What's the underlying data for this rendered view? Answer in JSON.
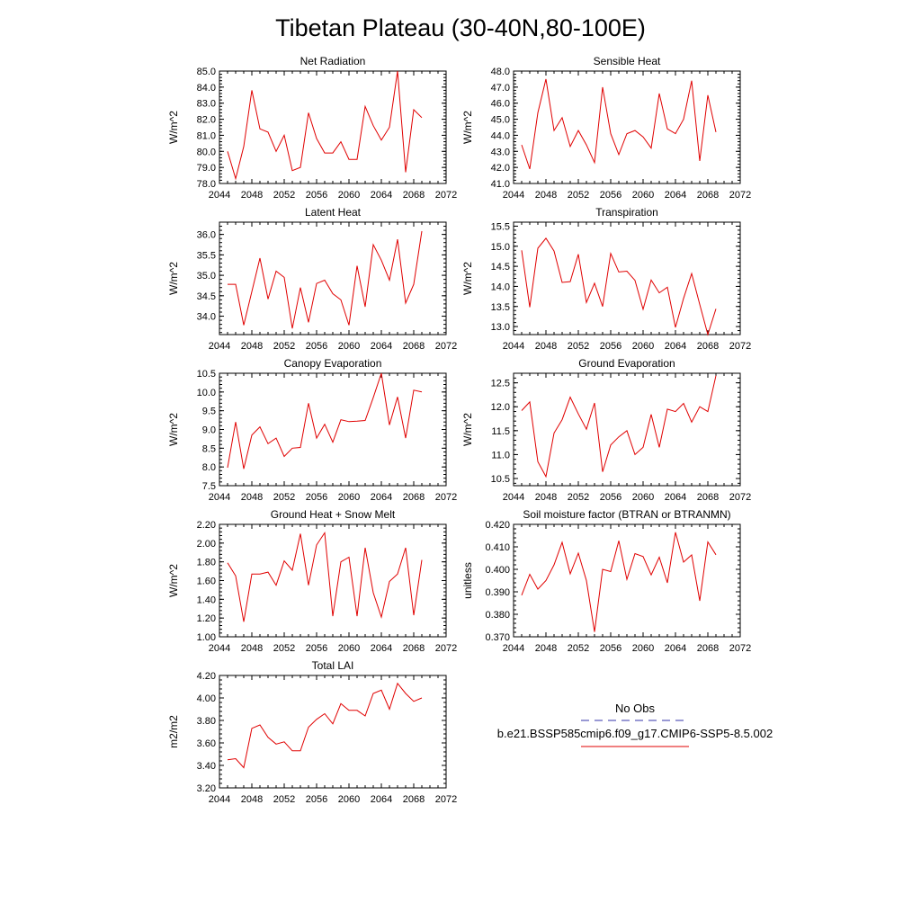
{
  "title": "Tibetan Plateau (30-40N,80-100E)",
  "legend": {
    "obs_label": "No Obs",
    "obs_color": "#3333aa",
    "model_label": "b.e21.BSSP585cmip6.f09_g17.CMIP6-SSP5-8.5.002",
    "model_color": "#e00000"
  },
  "colors": {
    "series": "#e00000",
    "axis": "#000000"
  },
  "chart_data": [
    {
      "type": "line",
      "title": "Net Radiation",
      "ylabel": "W/m^2",
      "xlim": [
        2044,
        2072
      ],
      "xticks": [
        2044,
        2048,
        2052,
        2056,
        2060,
        2064,
        2068,
        2072
      ],
      "ylim": [
        78,
        85
      ],
      "yticks": [
        "78.0",
        "79.0",
        "80.0",
        "81.0",
        "82.0",
        "83.0",
        "84.0",
        "85.0"
      ],
      "x": [
        2045,
        2046,
        2047,
        2048,
        2049,
        2050,
        2051,
        2052,
        2053,
        2054,
        2055,
        2056,
        2057,
        2058,
        2059,
        2060,
        2061,
        2062,
        2063,
        2064,
        2065,
        2066,
        2067,
        2068,
        2069
      ],
      "series": [
        {
          "values": [
            80.0,
            78.3,
            80.3,
            83.8,
            81.4,
            81.2,
            80.0,
            81.0,
            78.8,
            79.0,
            82.4,
            80.8,
            79.9,
            79.9,
            80.6,
            79.5,
            79.5,
            82.8,
            81.6,
            80.7,
            81.5,
            85.0,
            78.7,
            82.6,
            82.1
          ]
        }
      ]
    },
    {
      "type": "line",
      "title": "Sensible Heat",
      "ylabel": "W/m^2",
      "xlim": [
        2044,
        2072
      ],
      "xticks": [
        2044,
        2048,
        2052,
        2056,
        2060,
        2064,
        2068,
        2072
      ],
      "ylim": [
        41,
        48
      ],
      "yticks": [
        "41.0",
        "42.0",
        "43.0",
        "44.0",
        "45.0",
        "46.0",
        "47.0",
        "48.0"
      ],
      "x": [
        2045,
        2046,
        2047,
        2048,
        2049,
        2050,
        2051,
        2052,
        2053,
        2054,
        2055,
        2056,
        2057,
        2058,
        2059,
        2060,
        2061,
        2062,
        2063,
        2064,
        2065,
        2066,
        2067,
        2068,
        2069
      ],
      "series": [
        {
          "values": [
            43.4,
            41.9,
            45.4,
            47.5,
            44.3,
            45.1,
            43.3,
            44.3,
            43.4,
            42.3,
            47.0,
            44.1,
            42.8,
            44.1,
            44.3,
            43.9,
            43.2,
            46.6,
            44.4,
            44.1,
            45.0,
            47.4,
            42.4,
            46.5,
            44.2
          ]
        }
      ]
    },
    {
      "type": "line",
      "title": "Latent Heat",
      "ylabel": "W/m^2",
      "xlim": [
        2044,
        2072
      ],
      "xticks": [
        2044,
        2048,
        2052,
        2056,
        2060,
        2064,
        2068,
        2072
      ],
      "ylim": [
        33.55,
        36.3
      ],
      "yticks": [
        "34.0",
        "34.5",
        "35.0",
        "35.5",
        "36.0"
      ],
      "x": [
        2045,
        2046,
        2047,
        2048,
        2049,
        2050,
        2051,
        2052,
        2053,
        2054,
        2055,
        2056,
        2057,
        2058,
        2059,
        2060,
        2061,
        2062,
        2063,
        2064,
        2065,
        2066,
        2067,
        2068,
        2069
      ],
      "series": [
        {
          "values": [
            34.78,
            34.78,
            33.78,
            34.6,
            35.42,
            34.42,
            35.1,
            34.95,
            33.7,
            34.7,
            33.85,
            34.8,
            34.88,
            34.55,
            34.4,
            33.78,
            35.23,
            34.23,
            35.75,
            35.37,
            34.88,
            35.88,
            34.32,
            34.78,
            36.08
          ]
        }
      ]
    },
    {
      "type": "line",
      "title": "Transpiration",
      "ylabel": "W/m^2",
      "xlim": [
        2044,
        2072
      ],
      "xticks": [
        2044,
        2048,
        2052,
        2056,
        2060,
        2064,
        2068,
        2072
      ],
      "ylim": [
        12.8,
        15.6
      ],
      "yticks": [
        "13.0",
        "13.5",
        "14.0",
        "14.5",
        "15.0",
        "15.5"
      ],
      "x": [
        2045,
        2046,
        2047,
        2048,
        2049,
        2050,
        2051,
        2052,
        2053,
        2054,
        2055,
        2056,
        2057,
        2058,
        2059,
        2060,
        2061,
        2062,
        2063,
        2064,
        2065,
        2066,
        2067,
        2068,
        2069
      ],
      "series": [
        {
          "values": [
            14.9,
            13.48,
            14.95,
            15.2,
            14.88,
            14.1,
            14.12,
            14.8,
            13.6,
            14.08,
            13.5,
            14.82,
            14.36,
            14.38,
            14.15,
            13.43,
            14.16,
            13.84,
            13.98,
            12.98,
            13.7,
            14.32,
            13.55,
            12.8,
            13.44
          ]
        }
      ]
    },
    {
      "type": "line",
      "title": "Canopy Evaporation",
      "ylabel": "W/m^2",
      "xlim": [
        2044,
        2072
      ],
      "xticks": [
        2044,
        2048,
        2052,
        2056,
        2060,
        2064,
        2068,
        2072
      ],
      "ylim": [
        7.5,
        10.5
      ],
      "yticks": [
        "7.5",
        "8.0",
        "8.5",
        "9.0",
        "9.5",
        "10.0",
        "10.5"
      ],
      "x": [
        2045,
        2046,
        2047,
        2048,
        2049,
        2050,
        2051,
        2052,
        2053,
        2054,
        2055,
        2056,
        2057,
        2058,
        2059,
        2060,
        2061,
        2062,
        2063,
        2064,
        2065,
        2066,
        2067,
        2068,
        2069
      ],
      "series": [
        {
          "values": [
            7.98,
            9.2,
            7.95,
            8.85,
            9.07,
            8.62,
            8.77,
            8.28,
            8.5,
            8.52,
            9.7,
            8.77,
            9.14,
            8.66,
            9.26,
            9.21,
            9.22,
            9.24,
            9.85,
            10.5,
            9.12,
            9.87,
            8.77,
            10.05,
            10.0
          ]
        }
      ]
    },
    {
      "type": "line",
      "title": "Ground Evaporation",
      "ylabel": "W/m^2",
      "xlim": [
        2044,
        2072
      ],
      "xticks": [
        2044,
        2048,
        2052,
        2056,
        2060,
        2064,
        2068,
        2072
      ],
      "ylim": [
        10.35,
        12.7
      ],
      "yticks": [
        "10.5",
        "11.0",
        "11.5",
        "12.0",
        "12.5"
      ],
      "x": [
        2045,
        2046,
        2047,
        2048,
        2049,
        2050,
        2051,
        2052,
        2053,
        2054,
        2055,
        2056,
        2057,
        2058,
        2059,
        2060,
        2061,
        2062,
        2063,
        2064,
        2065,
        2066,
        2067,
        2068,
        2069
      ],
      "series": [
        {
          "values": [
            11.92,
            12.1,
            10.85,
            10.54,
            11.45,
            11.73,
            12.2,
            11.85,
            11.53,
            12.08,
            10.64,
            11.2,
            11.37,
            11.5,
            11.0,
            11.15,
            11.84,
            11.15,
            11.95,
            11.9,
            12.07,
            11.68,
            12.0,
            11.9,
            12.65
          ]
        }
      ]
    },
    {
      "type": "line",
      "title": "Ground Heat + Snow Melt",
      "ylabel": "W/m^2",
      "xlim": [
        2044,
        2072
      ],
      "xticks": [
        2044,
        2048,
        2052,
        2056,
        2060,
        2064,
        2068,
        2072
      ],
      "ylim": [
        1.0,
        2.2
      ],
      "yticks": [
        "1.00",
        "1.20",
        "1.40",
        "1.60",
        "1.80",
        "2.00",
        "2.20"
      ],
      "x": [
        2045,
        2046,
        2047,
        2048,
        2049,
        2050,
        2051,
        2052,
        2053,
        2054,
        2055,
        2056,
        2057,
        2058,
        2059,
        2060,
        2061,
        2062,
        2063,
        2064,
        2065,
        2066,
        2067,
        2068,
        2069
      ],
      "series": [
        {
          "values": [
            1.79,
            1.65,
            1.16,
            1.67,
            1.67,
            1.69,
            1.55,
            1.81,
            1.71,
            2.1,
            1.55,
            1.98,
            2.11,
            1.22,
            1.8,
            1.85,
            1.22,
            1.95,
            1.47,
            1.21,
            1.59,
            1.67,
            1.95,
            1.23,
            1.82
          ]
        }
      ]
    },
    {
      "type": "line",
      "title": "Soil moisture factor (BTRAN or BTRANMN)",
      "ylabel": "unitless",
      "xlim": [
        2044,
        2072
      ],
      "xticks": [
        2044,
        2048,
        2052,
        2056,
        2060,
        2064,
        2068,
        2072
      ],
      "ylim": [
        0.37,
        0.42
      ],
      "yticks": [
        "0.370",
        "0.380",
        "0.390",
        "0.400",
        "0.410",
        "0.420"
      ],
      "x": [
        2045,
        2046,
        2047,
        2048,
        2049,
        2050,
        2051,
        2052,
        2053,
        2054,
        2055,
        2056,
        2057,
        2058,
        2059,
        2060,
        2061,
        2062,
        2063,
        2064,
        2065,
        2066,
        2067,
        2068,
        2069
      ],
      "series": [
        {
          "values": [
            0.3885,
            0.3978,
            0.3912,
            0.395,
            0.402,
            0.412,
            0.398,
            0.4072,
            0.395,
            0.3722,
            0.4,
            0.399,
            0.4127,
            0.3955,
            0.407,
            0.4057,
            0.3975,
            0.4054,
            0.394,
            0.4165,
            0.4032,
            0.4064,
            0.386,
            0.4122,
            0.4065
          ]
        }
      ]
    },
    {
      "type": "line",
      "title": "Total LAI",
      "ylabel": "m2/m2",
      "xlim": [
        2044,
        2072
      ],
      "xticks": [
        2044,
        2048,
        2052,
        2056,
        2060,
        2064,
        2068,
        2072
      ],
      "ylim": [
        3.2,
        4.2
      ],
      "yticks": [
        "3.20",
        "3.40",
        "3.60",
        "3.80",
        "4.00",
        "4.20"
      ],
      "x": [
        2045,
        2046,
        2047,
        2048,
        2049,
        2050,
        2051,
        2052,
        2053,
        2054,
        2055,
        2056,
        2057,
        2058,
        2059,
        2060,
        2061,
        2062,
        2063,
        2064,
        2065,
        2066,
        2067,
        2068,
        2069
      ],
      "series": [
        {
          "values": [
            3.45,
            3.46,
            3.38,
            3.73,
            3.76,
            3.65,
            3.59,
            3.61,
            3.53,
            3.53,
            3.74,
            3.81,
            3.86,
            3.77,
            3.95,
            3.89,
            3.89,
            3.84,
            4.04,
            4.07,
            3.9,
            4.13,
            4.04,
            3.97,
            4.0
          ]
        }
      ]
    }
  ]
}
